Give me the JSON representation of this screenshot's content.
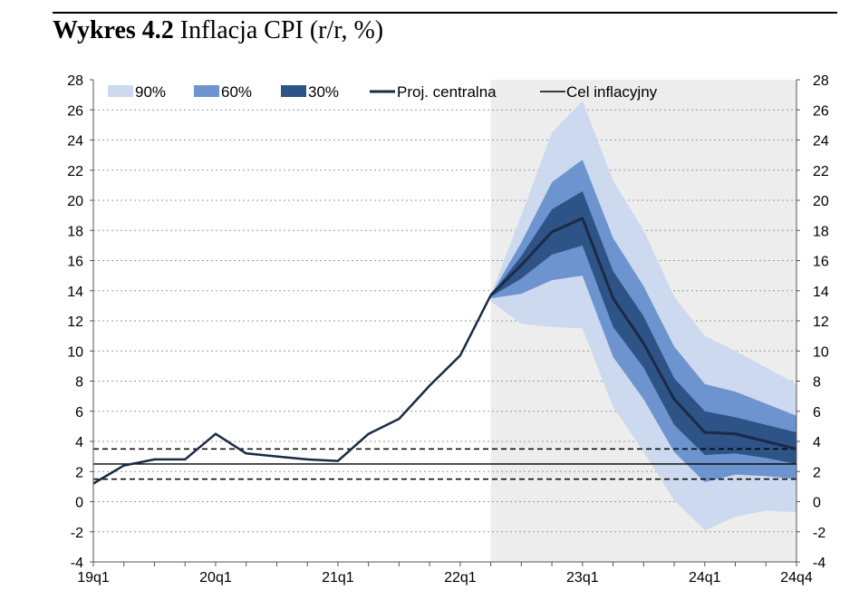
{
  "chart_data": {
    "type": "area",
    "title": "Wykres 4.2",
    "subtitle": "Inflacja CPI (r/r, %)",
    "ylim": [
      -4,
      28
    ],
    "yticks": [
      -4,
      -2,
      0,
      2,
      4,
      6,
      8,
      10,
      12,
      14,
      16,
      18,
      20,
      22,
      24,
      26,
      28
    ],
    "xtick_labels": [
      "19q1",
      "20q1",
      "21q1",
      "22q1",
      "23q1",
      "24q1",
      "24q4"
    ],
    "quarters": [
      "19q1",
      "19q2",
      "19q3",
      "19q4",
      "20q1",
      "20q2",
      "20q3",
      "20q4",
      "21q1",
      "21q2",
      "21q3",
      "21q4",
      "22q1",
      "22q2",
      "22q3",
      "22q4",
      "23q1",
      "23q2",
      "23q3",
      "23q4",
      "24q1",
      "24q2",
      "24q3",
      "24q4"
    ],
    "legend": {
      "band90": "90%",
      "band60": "60%",
      "band30": "30%",
      "central": "Proj. centralna",
      "target": "Cel inflacyjny"
    },
    "projection_start": "22q2",
    "history": [
      1.2,
      2.4,
      2.8,
      2.8,
      4.5,
      3.2,
      3.0,
      2.8,
      2.7,
      4.5,
      5.5,
      7.7,
      9.7,
      13.7
    ],
    "central": [
      13.7,
      15.7,
      17.9,
      18.8,
      13.5,
      10.5,
      6.8,
      4.6,
      4.5,
      4.0,
      3.5
    ],
    "band90": {
      "upper": [
        13.7,
        19.0,
        24.5,
        26.6,
        21.3,
        18.0,
        13.6,
        11.0,
        10.0,
        8.9,
        7.8
      ],
      "lower": [
        13.3,
        11.8,
        11.6,
        11.5,
        6.3,
        3.3,
        0.1,
        -1.9,
        -1.0,
        -0.6,
        -0.7
      ]
    },
    "band60": {
      "upper": [
        13.7,
        17.2,
        21.2,
        22.7,
        17.5,
        14.3,
        10.3,
        7.8,
        7.3,
        6.5,
        5.7
      ],
      "lower": [
        13.5,
        13.8,
        14.7,
        15.0,
        9.6,
        6.8,
        3.3,
        1.3,
        1.8,
        1.7,
        1.5
      ]
    },
    "band30": {
      "upper": [
        13.7,
        16.3,
        19.4,
        20.6,
        15.3,
        12.3,
        8.2,
        6.0,
        5.6,
        5.1,
        4.6
      ],
      "lower": [
        13.6,
        14.8,
        16.4,
        17.0,
        11.6,
        8.9,
        5.1,
        3.1,
        3.2,
        2.9,
        2.5
      ]
    },
    "target": 2.5,
    "target_band": [
      1.5,
      3.5
    ],
    "colors": {
      "band90": "#ccd9ee",
      "band60": "#6d94cf",
      "band30": "#2e5386",
      "central": "#1b2a46",
      "history": "#1b2a46",
      "shade": "#ededed",
      "grid": "#9a9a9a"
    }
  }
}
